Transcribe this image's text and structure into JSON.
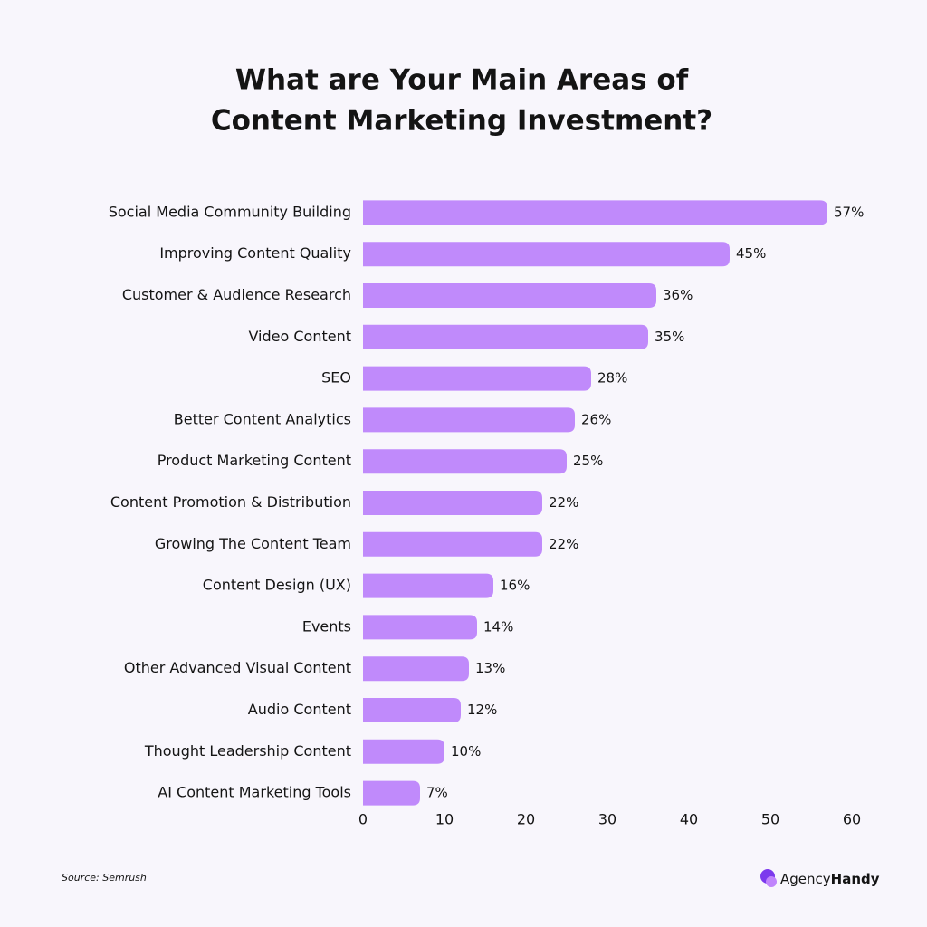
{
  "chart_data": {
    "type": "bar",
    "orientation": "horizontal",
    "title": [
      "What are Your Main Areas of",
      "Content Marketing Investment?"
    ],
    "categories": [
      "Social Media Community Building",
      "Improving Content Quality",
      "Customer & Audience Research",
      "Video Content",
      "SEO",
      "Better Content Analytics",
      "Product Marketing Content",
      "Content Promotion & Distribution",
      "Growing The Content Team",
      "Content Design (UX)",
      "Events",
      "Other Advanced Visual Content",
      "Audio Content",
      "Thought Leadership Content",
      "AI Content Marketing Tools"
    ],
    "values": [
      57,
      45,
      36,
      35,
      28,
      26,
      25,
      22,
      22,
      16,
      14,
      13,
      12,
      10,
      7
    ],
    "value_labels": [
      "57%",
      "45%",
      "36%",
      "35%",
      "28%",
      "26%",
      "25%",
      "22%",
      "22%",
      "16%",
      "14%",
      "13%",
      "12%",
      "10%",
      "7%"
    ],
    "color": "#c08afb",
    "xlim": [
      0,
      60
    ],
    "xticks": [
      0,
      10,
      20,
      30,
      40,
      50,
      60
    ],
    "grid": false,
    "source": "Source: Semrush",
    "brand": [
      "Agency",
      "Handy"
    ]
  }
}
